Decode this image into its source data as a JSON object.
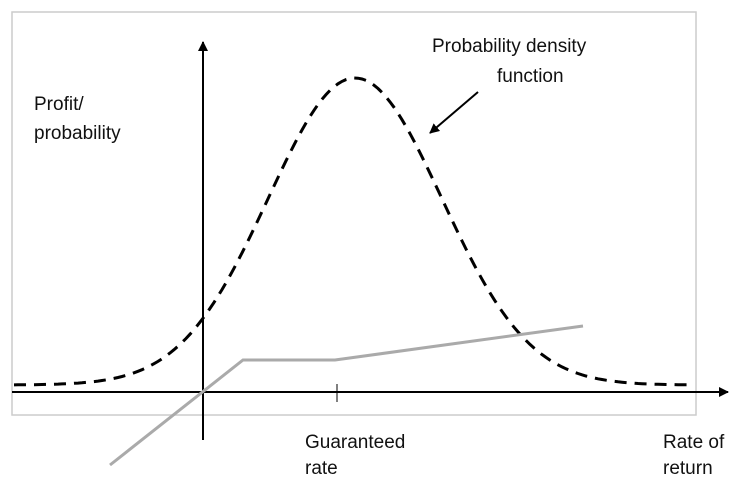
{
  "y_axis_label": [
    "Profit/",
    "probability"
  ],
  "curve_label": [
    "Probability density",
    "function"
  ],
  "tick_label": [
    "Guaranteed",
    "rate"
  ],
  "x_axis_label": [
    "Rate of",
    "return"
  ]
}
